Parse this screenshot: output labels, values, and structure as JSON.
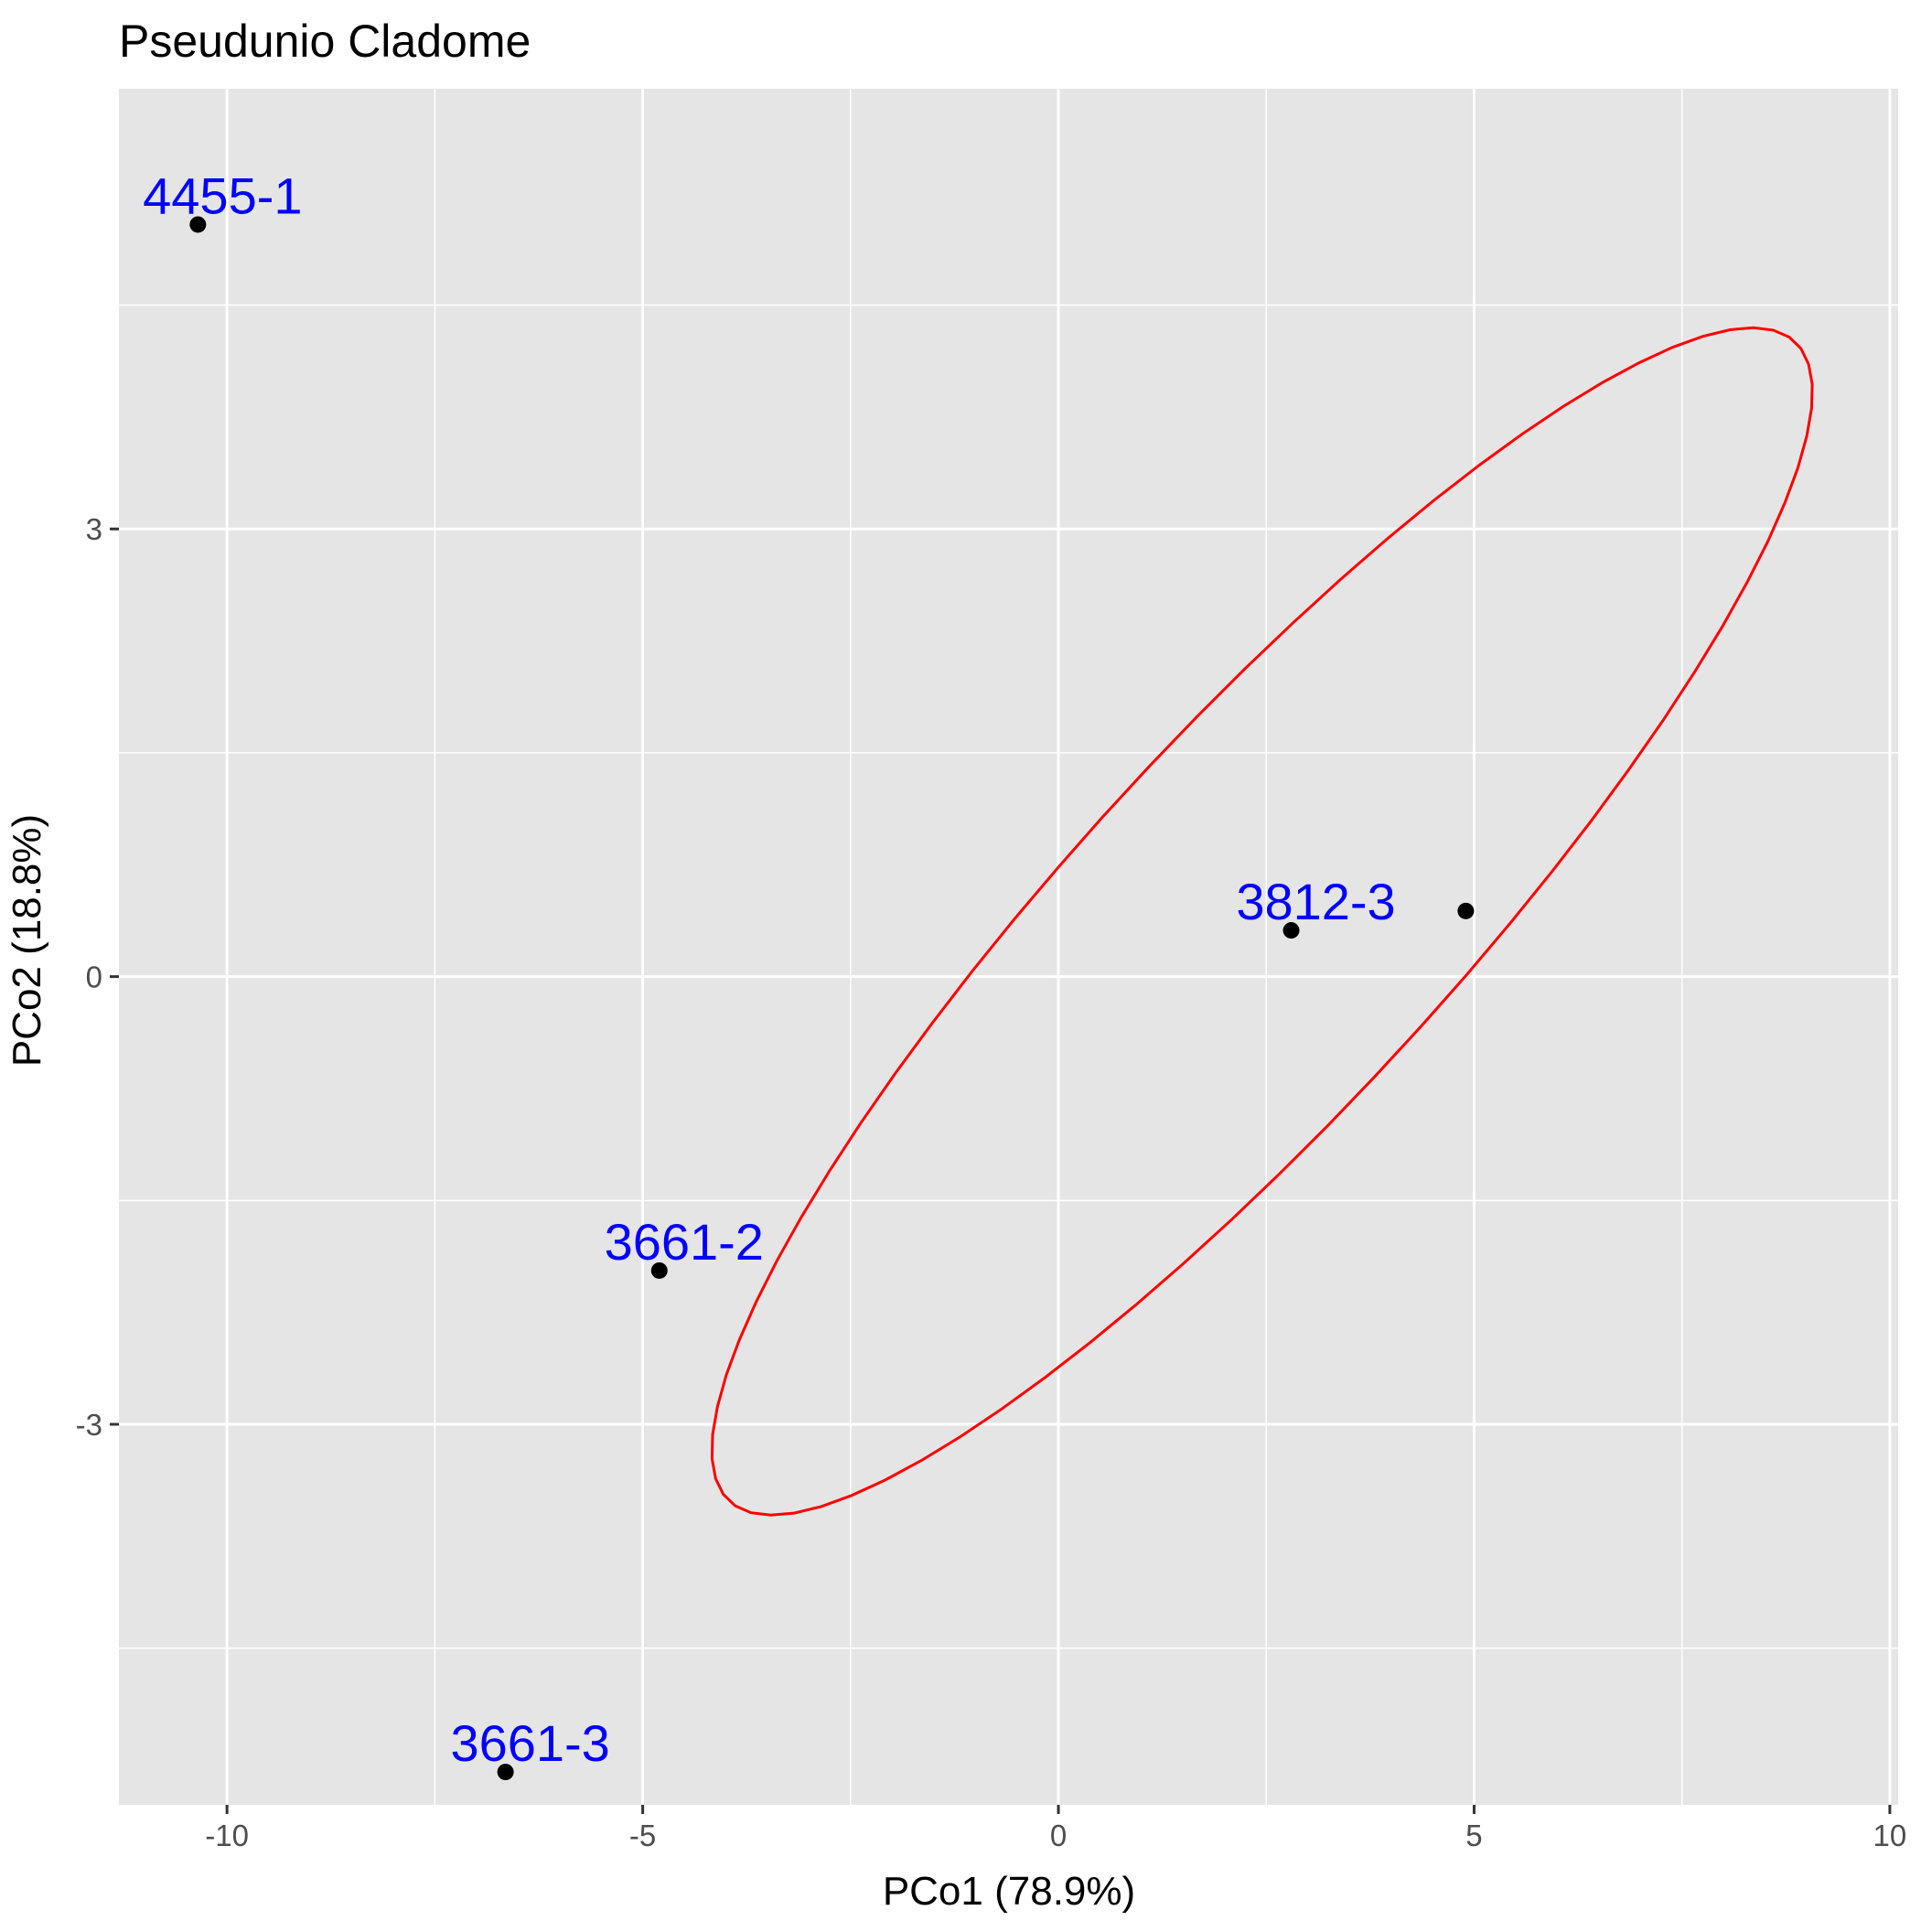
{
  "chart_data": {
    "type": "scatter",
    "title": "Pseudunio Cladome",
    "xlabel": "PCo1 (78.9%)",
    "ylabel": "PCo2 (18.8%)",
    "xlim": [
      -11.3,
      10.1
    ],
    "ylim": [
      -5.55,
      5.95
    ],
    "x_ticks": [
      -10,
      -5,
      0,
      5,
      10
    ],
    "x_tick_labels": [
      "-10",
      "-5",
      "0",
      "5",
      "10"
    ],
    "y_ticks": [
      -3,
      0,
      3
    ],
    "y_tick_labels": [
      "-3",
      "0",
      "3"
    ],
    "x_minor": [
      -7.5,
      -2.5,
      2.5,
      7.5
    ],
    "y_minor": [
      -4.5,
      -1.5,
      1.5,
      4.5
    ],
    "grid": true,
    "legend": "none",
    "points": [
      {
        "x": -10.35,
        "y": 5.04,
        "label": "4455-1"
      },
      {
        "x": -4.8,
        "y": -1.97,
        "label": "3661-2"
      },
      {
        "x": -6.65,
        "y": -5.33,
        "label": "3661-3"
      },
      {
        "x": 2.8,
        "y": 0.31,
        "label": "3812-3"
      },
      {
        "x": 4.9,
        "y": 0.44,
        "label": ""
      }
    ],
    "ellipse": {
      "center": [
        2.45,
        0.37
      ],
      "semi_major": 7.56,
      "semi_minor": 1.58,
      "angle_deg": 29.6,
      "color": "#ff0000"
    },
    "colors": {
      "panel": "#e5e5e5",
      "grid": "#ffffff",
      "point": "#000000",
      "label": "#0000ff"
    }
  }
}
